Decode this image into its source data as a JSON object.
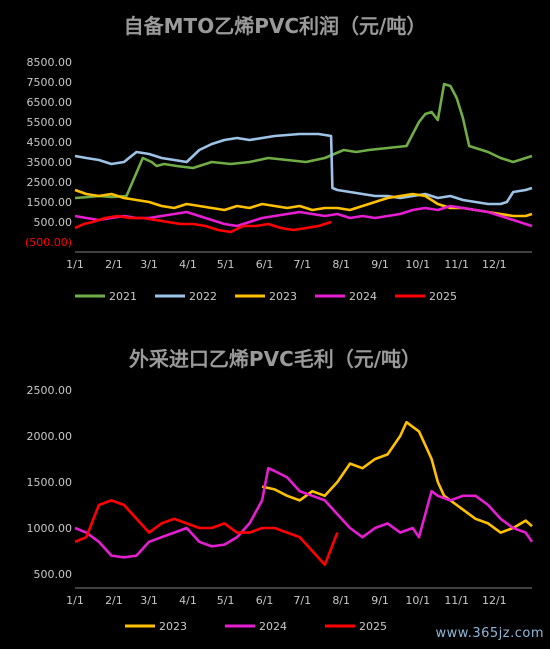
{
  "watermark": "www.365jz.com",
  "chart_data": [
    {
      "type": "line",
      "title": "自备MTO乙烯PVC利润（元/吨）",
      "x_ticks": [
        "1/1",
        "2/1",
        "3/1",
        "4/1",
        "5/1",
        "6/1",
        "7/1",
        "8/1",
        "9/1",
        "10/1",
        "11/1",
        "12/1"
      ],
      "y_ticks": [
        "8500.00",
        "7500.00",
        "6500.00",
        "5500.00",
        "4500.00",
        "3500.00",
        "2500.00",
        "1500.00",
        "500.00",
        "(500.00)"
      ],
      "ylim": [
        -500,
        8500
      ],
      "legend_position": "bottom",
      "series": [
        {
          "name": "2021",
          "color": "#70ad47",
          "x": [
            1,
            12,
            20,
            30,
            42,
            55,
            62,
            66,
            72,
            82,
            95,
            110,
            125,
            140,
            155,
            170,
            185,
            200,
            215,
            225,
            235,
            250,
            265,
            275,
            280,
            285,
            290,
            295,
            300,
            305,
            310,
            315,
            320,
            330,
            340,
            350,
            360,
            365
          ],
          "y": [
            1700,
            1750,
            1800,
            1750,
            1800,
            3700,
            3500,
            3300,
            3400,
            3300,
            3200,
            3500,
            3400,
            3500,
            3700,
            3600,
            3500,
            3700,
            4100,
            4000,
            4100,
            4200,
            4300,
            5500,
            5900,
            6000,
            5600,
            7400,
            7300,
            6700,
            5700,
            4300,
            4200,
            4000,
            3700,
            3500,
            3700,
            3800
          ]
        },
        {
          "name": "2022",
          "color": "#9dc3e6",
          "x": [
            1,
            10,
            20,
            30,
            40,
            50,
            60,
            70,
            80,
            90,
            100,
            110,
            120,
            130,
            140,
            160,
            180,
            195,
            205,
            206,
            210,
            220,
            230,
            240,
            250,
            260,
            270,
            280,
            290,
            300,
            310,
            320,
            330,
            340,
            345,
            350,
            360,
            365
          ],
          "y": [
            3800,
            3700,
            3600,
            3400,
            3500,
            4000,
            3900,
            3700,
            3600,
            3500,
            4100,
            4400,
            4600,
            4700,
            4600,
            4800,
            4900,
            4900,
            4800,
            2200,
            2100,
            2000,
            1900,
            1800,
            1800,
            1700,
            1800,
            1900,
            1700,
            1800,
            1600,
            1500,
            1400,
            1400,
            1500,
            2000,
            2100,
            2200
          ]
        },
        {
          "name": "2023",
          "color": "#ffc000",
          "x": [
            1,
            10,
            20,
            30,
            40,
            50,
            60,
            70,
            80,
            90,
            100,
            110,
            120,
            130,
            140,
            150,
            160,
            170,
            180,
            190,
            200,
            210,
            220,
            230,
            240,
            250,
            260,
            270,
            280,
            290,
            300,
            310,
            320,
            330,
            340,
            350,
            360,
            365
          ],
          "y": [
            2100,
            1900,
            1800,
            1900,
            1700,
            1600,
            1500,
            1300,
            1200,
            1400,
            1300,
            1200,
            1100,
            1300,
            1200,
            1400,
            1300,
            1200,
            1300,
            1100,
            1200,
            1200,
            1100,
            1300,
            1500,
            1700,
            1800,
            1900,
            1800,
            1400,
            1200,
            1200,
            1100,
            1000,
            900,
            800,
            800,
            900
          ]
        },
        {
          "name": "2024",
          "color": "#e61ed2",
          "x": [
            1,
            10,
            20,
            30,
            40,
            50,
            60,
            70,
            80,
            90,
            100,
            110,
            120,
            130,
            140,
            150,
            160,
            170,
            180,
            190,
            200,
            210,
            220,
            230,
            240,
            250,
            260,
            270,
            280,
            290,
            300,
            310,
            320,
            330,
            340,
            350,
            360,
            365
          ],
          "y": [
            800,
            700,
            600,
            700,
            800,
            700,
            700,
            800,
            900,
            1000,
            800,
            600,
            400,
            300,
            500,
            700,
            800,
            900,
            1000,
            900,
            800,
            900,
            700,
            800,
            700,
            800,
            900,
            1100,
            1200,
            1100,
            1300,
            1200,
            1100,
            1000,
            800,
            600,
            400,
            300
          ]
        },
        {
          "name": "2025",
          "color": "#ff0000",
          "x": [
            1,
            8,
            15,
            25,
            35,
            45,
            55,
            65,
            75,
            85,
            95,
            105,
            115,
            125,
            135,
            145,
            155,
            165,
            175,
            185,
            195,
            205
          ],
          "y": [
            200,
            400,
            500,
            700,
            800,
            700,
            700,
            600,
            500,
            400,
            400,
            300,
            100,
            0,
            300,
            300,
            400,
            200,
            100,
            200,
            300,
            500
          ]
        }
      ]
    },
    {
      "type": "line",
      "title": "外采进口乙烯PVC毛利（元/吨）",
      "x_ticks": [
        "1/1",
        "2/1",
        "3/1",
        "4/1",
        "5/1",
        "6/1",
        "7/1",
        "8/1",
        "9/1",
        "10/1",
        "11/1",
        "12/1"
      ],
      "y_ticks": [
        "2500.00",
        "2000.00",
        "1500.00",
        "1000.00",
        "500.00"
      ],
      "ylim": [
        500,
        2500
      ],
      "legend_position": "bottom",
      "series": [
        {
          "name": "2023",
          "color": "#ffc000",
          "x": [
            150,
            160,
            170,
            180,
            190,
            200,
            210,
            220,
            230,
            240,
            250,
            260,
            265,
            270,
            275,
            280,
            285,
            290,
            295,
            300,
            305,
            310,
            315,
            320,
            330,
            340,
            350,
            360,
            365
          ],
          "y": [
            1450,
            1420,
            1350,
            1300,
            1400,
            1350,
            1500,
            1700,
            1650,
            1750,
            1800,
            2000,
            2150,
            2100,
            2050,
            1900,
            1750,
            1500,
            1350,
            1300,
            1250,
            1200,
            1150,
            1100,
            1050,
            950,
            1000,
            1080,
            1020
          ]
        },
        {
          "name": "2024",
          "color": "#e61ed2",
          "x": [
            1,
            10,
            20,
            30,
            40,
            50,
            60,
            70,
            80,
            90,
            100,
            110,
            120,
            130,
            140,
            150,
            155,
            160,
            170,
            180,
            190,
            200,
            210,
            220,
            230,
            240,
            250,
            260,
            270,
            275,
            280,
            285,
            290,
            300,
            310,
            320,
            330,
            340,
            350,
            360,
            365
          ],
          "y": [
            1000,
            950,
            850,
            700,
            680,
            700,
            850,
            900,
            950,
            1000,
            850,
            800,
            820,
            900,
            1050,
            1300,
            1650,
            1620,
            1550,
            1400,
            1350,
            1300,
            1150,
            1000,
            900,
            1000,
            1050,
            950,
            1000,
            900,
            1150,
            1400,
            1350,
            1300,
            1350,
            1350,
            1250,
            1100,
            1000,
            950,
            850
          ]
        },
        {
          "name": "2025",
          "color": "#ff0000",
          "x": [
            1,
            10,
            20,
            30,
            40,
            50,
            60,
            70,
            80,
            90,
            100,
            110,
            120,
            130,
            140,
            150,
            160,
            170,
            180,
            190,
            200,
            210
          ],
          "y": [
            850,
            900,
            1250,
            1300,
            1250,
            1100,
            950,
            1050,
            1100,
            1050,
            1000,
            1000,
            1050,
            950,
            950,
            1000,
            1000,
            950,
            900,
            750,
            600,
            950
          ]
        }
      ]
    }
  ]
}
